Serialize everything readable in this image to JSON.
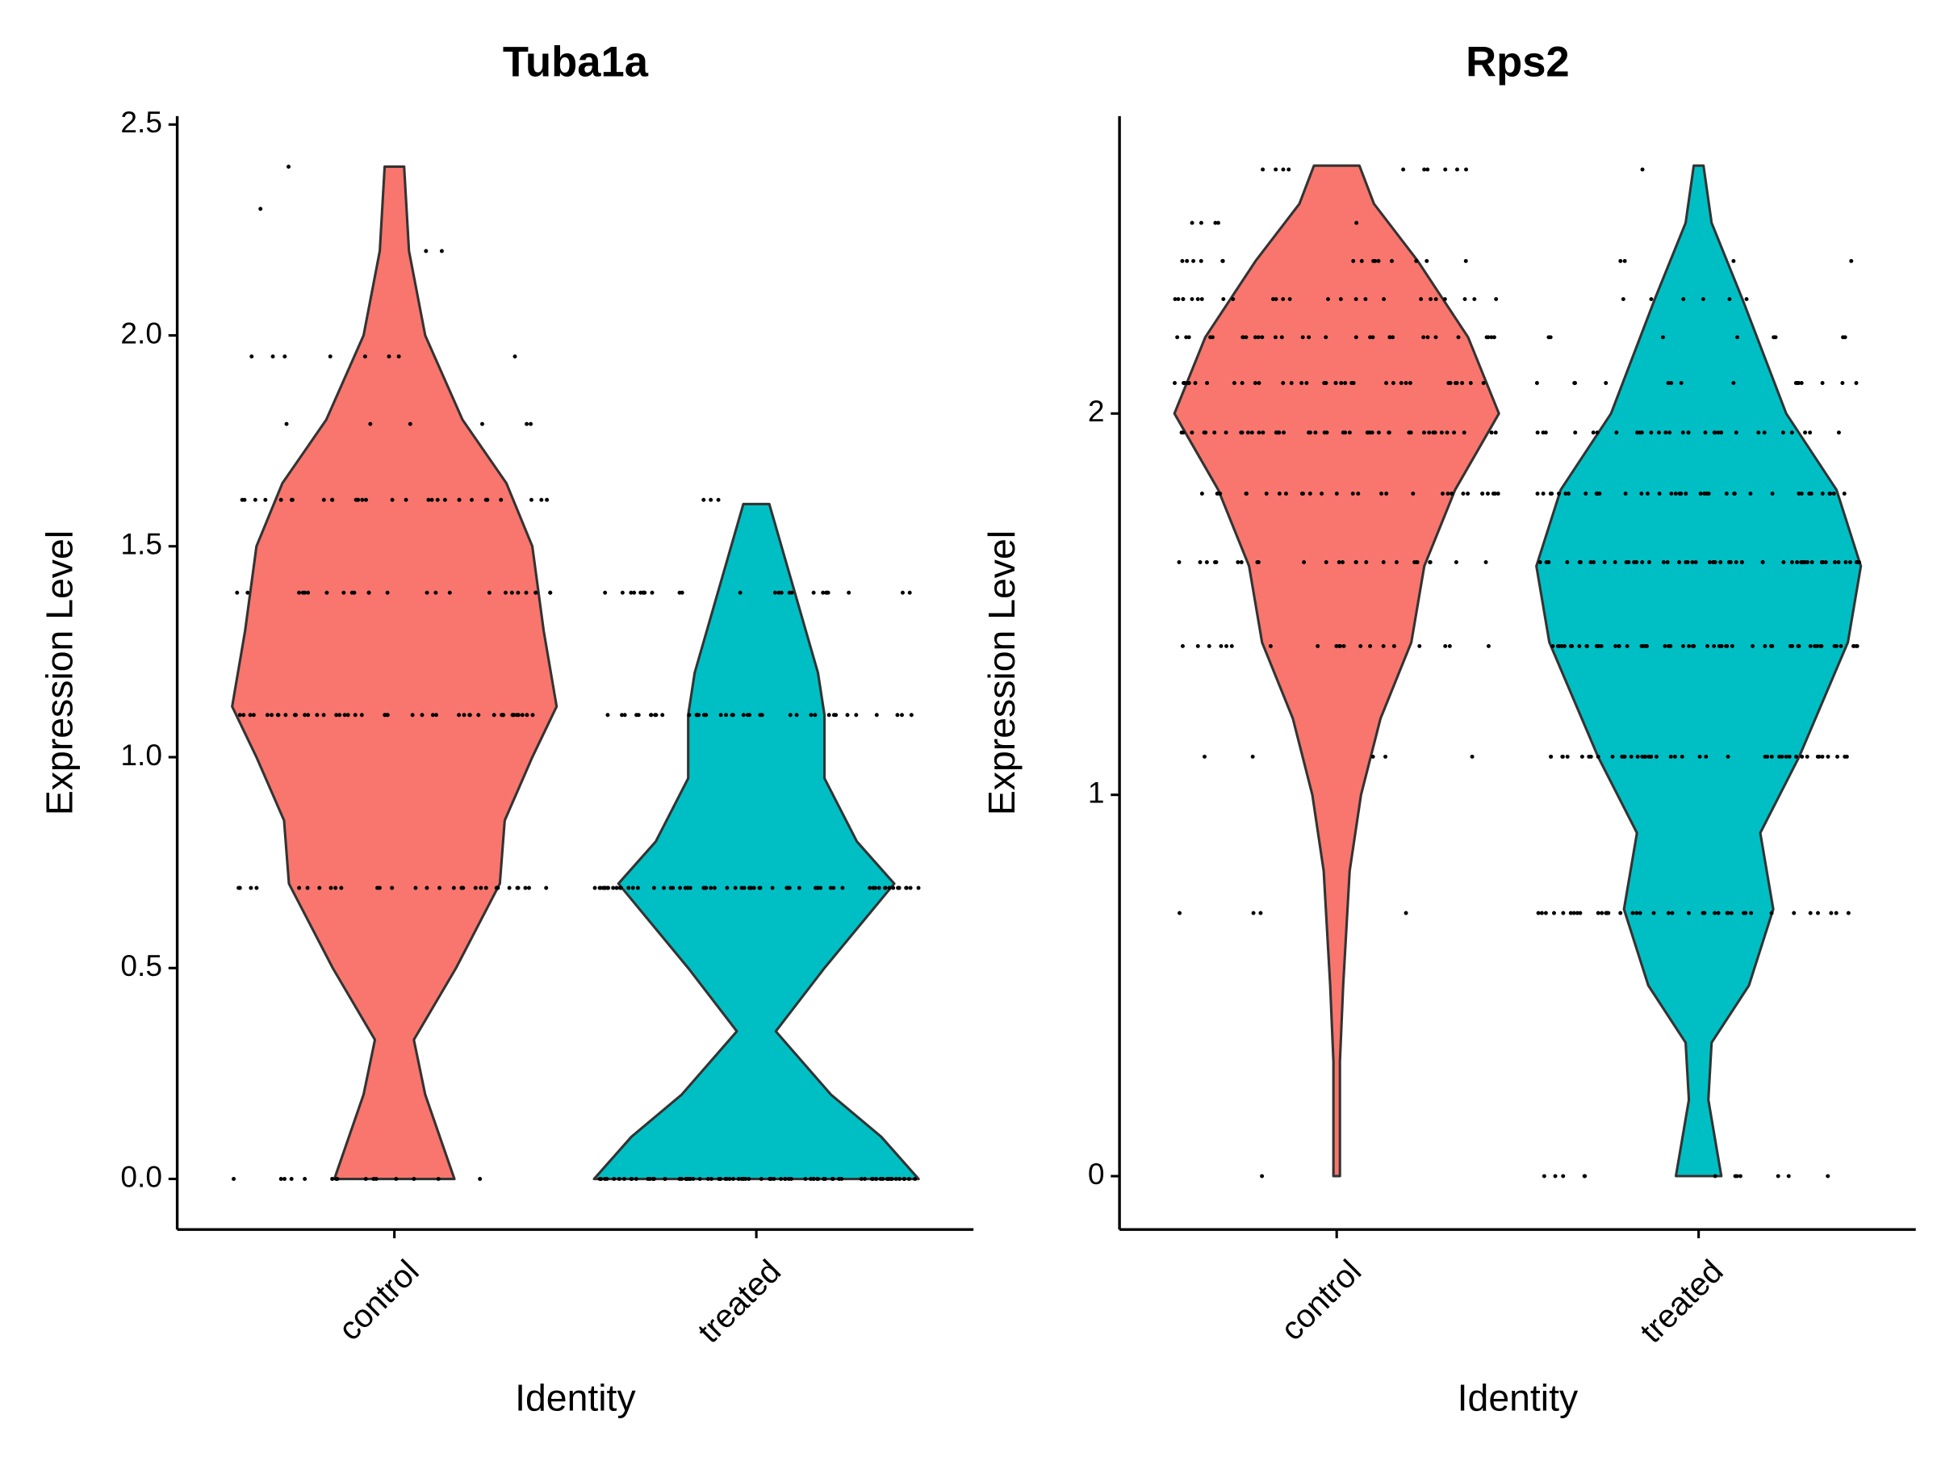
{
  "chart_data": [
    {
      "type": "violin",
      "title": "Tuba1a",
      "x_label": "Identity",
      "y_label": "Expression Level",
      "categories": [
        "control",
        "treated"
      ],
      "ylim": [
        -0.12,
        2.52
      ],
      "yticks": [
        {
          "value": 0,
          "label": "0.0"
        },
        0.5,
        {
          "value": 1,
          "label": "1.0"
        },
        1.5,
        {
          "value": 2,
          "label": "2.0"
        },
        2.5
      ],
      "series": [
        {
          "color": "#F8766D",
          "density_y": [
            0,
            0.2,
            0.33,
            0.5,
            0.7,
            0.85,
            1.0,
            1.12,
            1.3,
            1.5,
            1.65,
            1.8,
            2.0,
            2.2,
            2.4
          ],
          "density_width": [
            0.37,
            0.19,
            0.12,
            0.38,
            0.65,
            0.68,
            0.85,
            1.0,
            0.92,
            0.85,
            0.69,
            0.42,
            0.19,
            0.09,
            0.06
          ],
          "point_levels": [
            0,
            0.69,
            1.1,
            1.39,
            1.61,
            1.79,
            1.95,
            2.2,
            2.3,
            2.4
          ],
          "point_counts": [
            15,
            30,
            45,
            25,
            30,
            6,
            8,
            2,
            1,
            1
          ]
        },
        {
          "color": "#00BFC4",
          "density_y": [
            0,
            0.1,
            0.2,
            0.35,
            0.5,
            0.7,
            0.8,
            0.95,
            1.1,
            1.2,
            1.4,
            1.6
          ],
          "density_width": [
            1.0,
            0.77,
            0.46,
            0.12,
            0.42,
            0.85,
            0.62,
            0.42,
            0.42,
            0.38,
            0.23,
            0.08
          ],
          "point_levels": [
            0,
            0.69,
            1.1,
            1.39,
            1.61
          ],
          "point_counts": [
            80,
            70,
            40,
            25,
            3
          ]
        }
      ]
    },
    {
      "type": "violin",
      "title": "Rps2",
      "x_label": "Identity",
      "y_label": "Expression Level",
      "categories": [
        "control",
        "treated"
      ],
      "ylim": [
        -0.14,
        2.78
      ],
      "yticks": [
        0,
        1,
        2
      ],
      "series": [
        {
          "color": "#F8766D",
          "density_y": [
            0,
            0.3,
            0.5,
            0.8,
            1.0,
            1.2,
            1.4,
            1.6,
            1.8,
            2.0,
            2.2,
            2.4,
            2.55,
            2.65
          ],
          "density_width": [
            0.02,
            0.02,
            0.04,
            0.08,
            0.15,
            0.27,
            0.46,
            0.54,
            0.73,
            1.0,
            0.81,
            0.5,
            0.23,
            0.14
          ],
          "point_levels": [
            0,
            0.69,
            1.1,
            1.39,
            1.61,
            1.79,
            1.95,
            2.08,
            2.2,
            2.3,
            2.4,
            2.5,
            2.64
          ],
          "point_counts": [
            1,
            4,
            5,
            20,
            25,
            30,
            45,
            35,
            30,
            25,
            15,
            5,
            10
          ]
        },
        {
          "color": "#00BFC4",
          "density_y": [
            0,
            0.2,
            0.35,
            0.5,
            0.7,
            0.9,
            1.1,
            1.4,
            1.6,
            1.8,
            2.0,
            2.3,
            2.5,
            2.65
          ],
          "density_width": [
            0.14,
            0.06,
            0.08,
            0.31,
            0.46,
            0.38,
            0.62,
            0.92,
            1.0,
            0.85,
            0.54,
            0.27,
            0.08,
            0.03
          ],
          "point_levels": [
            0,
            0.69,
            1.1,
            1.39,
            1.61,
            1.79,
            1.95,
            2.08,
            2.2,
            2.3,
            2.4,
            2.64
          ],
          "point_counts": [
            12,
            40,
            45,
            60,
            55,
            40,
            30,
            15,
            8,
            6,
            4,
            1
          ]
        }
      ]
    }
  ]
}
